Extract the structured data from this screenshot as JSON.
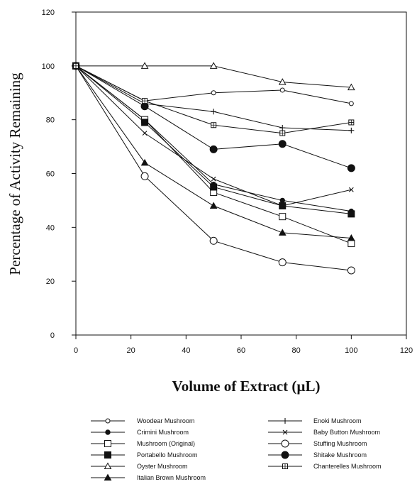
{
  "chart_data": {
    "type": "line",
    "xlabel": "Volume of Extract (µL)",
    "ylabel": "Percentage of Activity Remaining",
    "xlim": [
      0,
      120
    ],
    "ylim": [
      0,
      120
    ],
    "x_ticks": [
      0,
      20,
      40,
      60,
      80,
      100,
      120
    ],
    "y_ticks": [
      0,
      20,
      40,
      60,
      80,
      100,
      120
    ],
    "grid": false,
    "legend_position": "bottom",
    "x": [
      0,
      25,
      50,
      75,
      100
    ],
    "series": [
      {
        "name": "Woodear Mushroom",
        "marker": "open-circle-small",
        "values": [
          100,
          87,
          90,
          91,
          86
        ]
      },
      {
        "name": "Crimini Mushroom",
        "marker": "filled-circle-small",
        "values": [
          100,
          80,
          56,
          50,
          46
        ]
      },
      {
        "name": "Mushroom (Original)",
        "marker": "open-square",
        "values": [
          100,
          80,
          53,
          44,
          34
        ]
      },
      {
        "name": "Portabello Mushroom",
        "marker": "filled-square",
        "values": [
          100,
          79,
          55,
          48,
          45
        ]
      },
      {
        "name": "Oyster Mushroom",
        "marker": "open-triangle",
        "values": [
          100,
          100,
          100,
          94,
          92
        ]
      },
      {
        "name": "Italian Brown Mushroom",
        "marker": "filled-triangle",
        "values": [
          100,
          64,
          48,
          38,
          36
        ]
      },
      {
        "name": "Enoki Mushroom",
        "marker": "plus",
        "values": [
          100,
          86,
          83,
          77,
          76
        ]
      },
      {
        "name": "Baby Button Mushroom",
        "marker": "cross",
        "values": [
          100,
          75,
          58,
          48,
          54
        ]
      },
      {
        "name": "Stuffing Mushroom",
        "marker": "open-circle-large",
        "values": [
          100,
          59,
          35,
          27,
          24
        ]
      },
      {
        "name": "Shitake Mushroom",
        "marker": "filled-circle-large",
        "values": [
          100,
          85,
          69,
          71,
          62
        ]
      },
      {
        "name": "Chanterelles Mushroom",
        "marker": "boxed-plus",
        "values": [
          100,
          87,
          78,
          75,
          79
        ]
      }
    ]
  }
}
